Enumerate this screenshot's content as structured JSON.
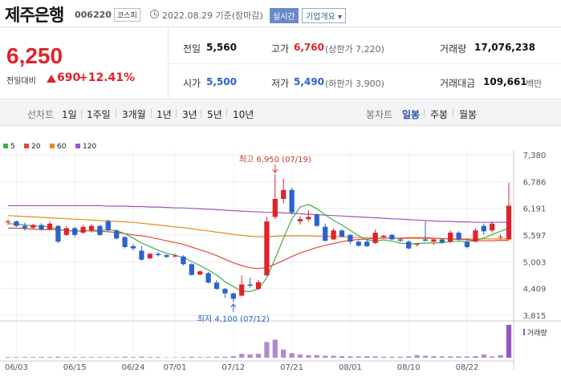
{
  "header": {
    "title": "제주은행",
    "code": "006220",
    "market": "코스피",
    "date": "2022.08.29 기준(장마감)",
    "realtime_label": "실시간",
    "company_button": "기업개요"
  },
  "price": {
    "current": "6,250",
    "change_label": "전일대비",
    "change": "690",
    "change_pct": "+12.41%"
  },
  "fields": {
    "prev_close": {
      "label": "전일",
      "value": "5,560"
    },
    "open": {
      "label": "시가",
      "value": "5,500"
    },
    "high": {
      "label": "고가",
      "value": "6,760",
      "sub": "(상한가 7,220)"
    },
    "low": {
      "label": "저가",
      "value": "5,490",
      "sub": "(하한가 3,900)"
    },
    "volume": {
      "label": "거래량",
      "value": "17,076,238"
    },
    "trade_value": {
      "label": "거래대금",
      "value": "109,661",
      "unit": "백만"
    }
  },
  "period_bar": {
    "line_label": "선차트",
    "line_periods": [
      "1일",
      "1주일",
      "3개월",
      "1년",
      "3년",
      "5년",
      "10년"
    ],
    "candle_label": "봉차트",
    "candle_periods": [
      "일봉",
      "주봉",
      "월봉"
    ],
    "selected": "일봉"
  },
  "colors": {
    "up": "#e0232b",
    "down": "#2a63cc",
    "ma5": "#3fae49",
    "ma20": "#e04a3a",
    "ma60": "#e88a1f",
    "ma120": "#9a56c4"
  },
  "chart_data": {
    "type": "candlestick",
    "legend": [
      {
        "name": "5",
        "color": "#3fae49"
      },
      {
        "name": "20",
        "color": "#e04a3a"
      },
      {
        "name": "60",
        "color": "#e88a1f"
      },
      {
        "name": "120",
        "color": "#9a56c4"
      }
    ],
    "y_ticks": [
      "7,380",
      "6,786",
      "6,191",
      "5,597",
      "5,003",
      "4,409",
      "3,815"
    ],
    "ylim": [
      3815,
      7380
    ],
    "x_ticks": [
      "06/03",
      "06/15",
      "06/24",
      "07/01",
      "07/12",
      "07/21",
      "08/01",
      "08/10",
      "08/22"
    ],
    "annotations": {
      "high": "최고 6,950 (07/19)",
      "low": "최저 4,100 (07/12)"
    },
    "volume_label": "거래량",
    "candles": [
      {
        "date": "06/02",
        "o": 5880,
        "h": 5950,
        "l": 5820,
        "c": 5900
      },
      {
        "date": "06/03",
        "o": 5900,
        "h": 5920,
        "l": 5780,
        "c": 5800
      },
      {
        "date": "06/07",
        "o": 5800,
        "h": 5870,
        "l": 5700,
        "c": 5750
      },
      {
        "date": "06/08",
        "o": 5760,
        "h": 5850,
        "l": 5720,
        "c": 5820
      },
      {
        "date": "06/09",
        "o": 5820,
        "h": 5860,
        "l": 5700,
        "c": 5720
      },
      {
        "date": "06/10",
        "o": 5720,
        "h": 5900,
        "l": 5700,
        "c": 5850
      },
      {
        "date": "06/13",
        "o": 5800,
        "h": 5820,
        "l": 5420,
        "c": 5450
      },
      {
        "date": "06/14",
        "o": 5600,
        "h": 5800,
        "l": 5580,
        "c": 5750
      },
      {
        "date": "06/15",
        "o": 5750,
        "h": 5780,
        "l": 5550,
        "c": 5600
      },
      {
        "date": "06/16",
        "o": 5650,
        "h": 5820,
        "l": 5620,
        "c": 5780
      },
      {
        "date": "06/17",
        "o": 5700,
        "h": 5830,
        "l": 5650,
        "c": 5800
      },
      {
        "date": "06/20",
        "o": 5800,
        "h": 5820,
        "l": 5580,
        "c": 5600
      },
      {
        "date": "06/21",
        "o": 5900,
        "h": 5950,
        "l": 5680,
        "c": 5700
      },
      {
        "date": "06/22",
        "o": 5700,
        "h": 5720,
        "l": 5500,
        "c": 5520
      },
      {
        "date": "06/23",
        "o": 5550,
        "h": 5580,
        "l": 5300,
        "c": 5330
      },
      {
        "date": "06/24",
        "o": 5350,
        "h": 5400,
        "l": 5250,
        "c": 5300
      },
      {
        "date": "06/27",
        "o": 5250,
        "h": 5350,
        "l": 5030,
        "c": 5050
      },
      {
        "date": "06/28",
        "o": 5080,
        "h": 5200,
        "l": 5060,
        "c": 5180
      },
      {
        "date": "06/29",
        "o": 5180,
        "h": 5220,
        "l": 5120,
        "c": 5150
      },
      {
        "date": "06/30",
        "o": 5150,
        "h": 5170,
        "l": 5090,
        "c": 5110
      },
      {
        "date": "07/01",
        "o": 5120,
        "h": 5180,
        "l": 5100,
        "c": 5140
      },
      {
        "date": "07/04",
        "o": 5120,
        "h": 5150,
        "l": 4920,
        "c": 4950
      },
      {
        "date": "07/05",
        "o": 4950,
        "h": 4970,
        "l": 4700,
        "c": 4710
      },
      {
        "date": "07/06",
        "o": 4720,
        "h": 4820,
        "l": 4700,
        "c": 4790
      },
      {
        "date": "07/07",
        "o": 4750,
        "h": 4780,
        "l": 4520,
        "c": 4540
      },
      {
        "date": "07/08",
        "o": 4540,
        "h": 4600,
        "l": 4380,
        "c": 4400
      },
      {
        "date": "07/11",
        "o": 4400,
        "h": 4420,
        "l": 4200,
        "c": 4300
      },
      {
        "date": "07/12",
        "o": 4300,
        "h": 4320,
        "l": 4100,
        "c": 4180
      },
      {
        "date": "07/13",
        "o": 4250,
        "h": 4700,
        "l": 4230,
        "c": 4500
      },
      {
        "date": "07/14",
        "o": 4500,
        "h": 4650,
        "l": 4430,
        "c": 4470
      },
      {
        "date": "07/15",
        "o": 4400,
        "h": 4600,
        "l": 4380,
        "c": 4550
      },
      {
        "date": "07/18",
        "o": 4700,
        "h": 6000,
        "l": 4700,
        "c": 5900
      },
      {
        "date": "07/19",
        "o": 6000,
        "h": 6950,
        "l": 5950,
        "c": 6400
      },
      {
        "date": "07/20",
        "o": 6400,
        "h": 6850,
        "l": 6300,
        "c": 6600
      },
      {
        "date": "07/21",
        "o": 6600,
        "h": 6650,
        "l": 6050,
        "c": 6100
      },
      {
        "date": "07/22",
        "o": 5900,
        "h": 6020,
        "l": 5830,
        "c": 5950
      },
      {
        "date": "07/25",
        "o": 5950,
        "h": 6150,
        "l": 5900,
        "c": 6000
      },
      {
        "date": "07/26",
        "o": 6050,
        "h": 6080,
        "l": 5780,
        "c": 5800
      },
      {
        "date": "07/27",
        "o": 5780,
        "h": 5850,
        "l": 5450,
        "c": 5470
      },
      {
        "date": "07/28",
        "o": 5500,
        "h": 5750,
        "l": 5480,
        "c": 5700
      },
      {
        "date": "07/29",
        "o": 5700,
        "h": 5720,
        "l": 5550,
        "c": 5560
      },
      {
        "date": "08/01",
        "o": 5600,
        "h": 5620,
        "l": 5400,
        "c": 5450
      },
      {
        "date": "08/02",
        "o": 5450,
        "h": 5480,
        "l": 5340,
        "c": 5360
      },
      {
        "date": "08/03",
        "o": 5450,
        "h": 5500,
        "l": 5330,
        "c": 5350
      },
      {
        "date": "08/04",
        "o": 5420,
        "h": 5720,
        "l": 5400,
        "c": 5650
      },
      {
        "date": "08/05",
        "o": 5550,
        "h": 5600,
        "l": 5520,
        "c": 5580
      },
      {
        "date": "08/08",
        "o": 5600,
        "h": 5620,
        "l": 5480,
        "c": 5500
      },
      {
        "date": "08/09",
        "o": 5500,
        "h": 5550,
        "l": 5450,
        "c": 5470
      },
      {
        "date": "08/10",
        "o": 5450,
        "h": 5480,
        "l": 5280,
        "c": 5300
      },
      {
        "date": "08/11",
        "o": 5380,
        "h": 5420,
        "l": 5340,
        "c": 5400
      },
      {
        "date": "08/12",
        "o": 5500,
        "h": 5900,
        "l": 5450,
        "c": 5470
      },
      {
        "date": "08/16",
        "o": 5450,
        "h": 5520,
        "l": 5380,
        "c": 5500
      },
      {
        "date": "08/17",
        "o": 5500,
        "h": 5530,
        "l": 5400,
        "c": 5430
      },
      {
        "date": "08/18",
        "o": 5450,
        "h": 5700,
        "l": 5420,
        "c": 5650
      },
      {
        "date": "08/19",
        "o": 5650,
        "h": 5680,
        "l": 5480,
        "c": 5500
      },
      {
        "date": "08/22",
        "o": 5450,
        "h": 5520,
        "l": 5300,
        "c": 5330
      },
      {
        "date": "08/23",
        "o": 5450,
        "h": 5750,
        "l": 5430,
        "c": 5700
      },
      {
        "date": "08/24",
        "o": 5800,
        "h": 5850,
        "l": 5600,
        "c": 5680
      },
      {
        "date": "08/25",
        "o": 5700,
        "h": 5900,
        "l": 5650,
        "c": 5850
      },
      {
        "date": "08/26",
        "o": 5560,
        "h": 5620,
        "l": 5500,
        "c": 5560
      },
      {
        "date": "08/29",
        "o": 5500,
        "h": 6760,
        "l": 5490,
        "c": 6250
      }
    ],
    "ma5": [
      5850,
      5840,
      5820,
      5800,
      5790,
      5780,
      5720,
      5700,
      5680,
      5690,
      5700,
      5700,
      5720,
      5690,
      5630,
      5530,
      5420,
      5340,
      5260,
      5190,
      5150,
      5100,
      5010,
      4920,
      4820,
      4710,
      4560,
      4450,
      4350,
      4340,
      4400,
      4650,
      5070,
      5530,
      5950,
      6220,
      6280,
      6180,
      6050,
      5920,
      5820,
      5700,
      5580,
      5490,
      5460,
      5490,
      5460,
      5420,
      5400,
      5410,
      5420,
      5420,
      5430,
      5450,
      5460,
      5440,
      5480,
      5530,
      5610,
      5680,
      5750
    ],
    "ma20": [
      5750,
      5750,
      5740,
      5730,
      5720,
      5720,
      5710,
      5700,
      5690,
      5690,
      5690,
      5680,
      5670,
      5650,
      5630,
      5600,
      5580,
      5550,
      5510,
      5470,
      5430,
      5390,
      5330,
      5270,
      5210,
      5140,
      5060,
      4980,
      4920,
      4870,
      4850,
      4880,
      4950,
      5030,
      5120,
      5200,
      5260,
      5320,
      5370,
      5410,
      5450,
      5480,
      5500,
      5510,
      5520,
      5530,
      5530,
      5530,
      5540,
      5540,
      5540,
      5530,
      5520,
      5510,
      5500,
      5490,
      5480,
      5470,
      5470,
      5480,
      5480
    ],
    "ma60": [
      6030,
      6020,
      6010,
      6000,
      5990,
      5980,
      5970,
      5960,
      5950,
      5940,
      5930,
      5920,
      5910,
      5900,
      5890,
      5880,
      5860,
      5840,
      5820,
      5800,
      5780,
      5760,
      5740,
      5710,
      5690,
      5660,
      5640,
      5610,
      5590,
      5570,
      5560,
      5560,
      5570,
      5580,
      5580,
      5580,
      5580,
      5570,
      5570,
      5560,
      5560,
      5550,
      5540,
      5540,
      5530,
      5530,
      5530,
      5520,
      5520,
      5520,
      5520,
      5520,
      5520,
      5510,
      5510,
      5510,
      5510,
      5510,
      5510,
      5510,
      5510
    ],
    "ma120": [
      6250,
      6250,
      6250,
      6250,
      6250,
      6250,
      6250,
      6250,
      6250,
      6250,
      6250,
      6250,
      6240,
      6240,
      6240,
      6230,
      6230,
      6220,
      6220,
      6210,
      6200,
      6200,
      6190,
      6180,
      6170,
      6160,
      6150,
      6140,
      6130,
      6120,
      6110,
      6100,
      6100,
      6090,
      6080,
      6070,
      6060,
      6050,
      6040,
      6030,
      6020,
      6010,
      6000,
      5990,
      5980,
      5970,
      5960,
      5950,
      5940,
      5930,
      5920,
      5910,
      5900,
      5900,
      5890,
      5890,
      5880,
      5880,
      5880,
      5880,
      5880
    ],
    "volume": [
      0.02,
      0.02,
      0.02,
      0.02,
      0.02,
      0.02,
      0.03,
      0.02,
      0.02,
      0.02,
      0.02,
      0.02,
      0.02,
      0.02,
      0.03,
      0.02,
      0.03,
      0.02,
      0.02,
      0.01,
      0.01,
      0.02,
      0.03,
      0.02,
      0.02,
      0.03,
      0.03,
      0.05,
      0.12,
      0.1,
      0.12,
      0.48,
      0.55,
      0.25,
      0.14,
      0.1,
      0.08,
      0.08,
      0.06,
      0.06,
      0.05,
      0.04,
      0.04,
      0.05,
      0.04,
      0.03,
      0.03,
      0.03,
      0.04,
      0.08,
      0.06,
      0.05,
      0.04,
      0.04,
      0.04,
      0.04,
      0.05,
      0.1,
      0.04,
      0.08,
      1.0
    ]
  }
}
